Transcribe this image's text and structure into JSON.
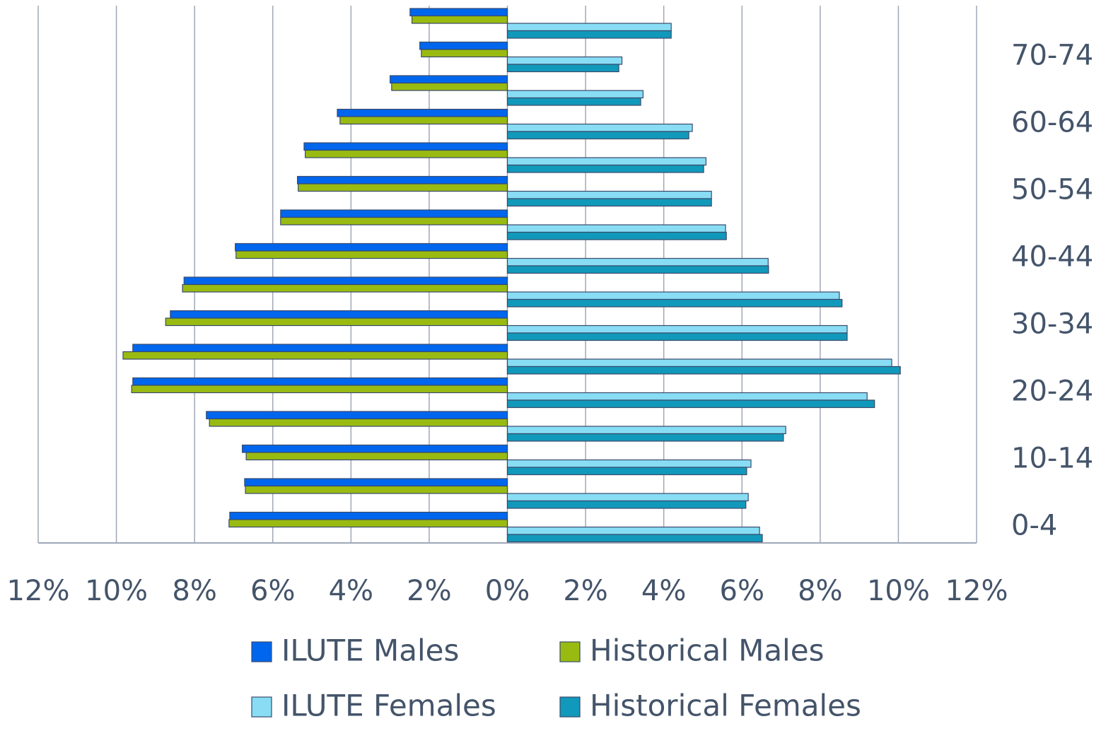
{
  "chart_data": {
    "type": "pyramid",
    "categories": [
      "0-4",
      null,
      "10-14",
      null,
      "20-24",
      null,
      "30-34",
      null,
      "40-44",
      null,
      "50-54",
      null,
      "60-64",
      null,
      "70-74",
      null
    ],
    "series": [
      {
        "name": "ILUTE Males",
        "color": "#0066ee",
        "values": [
          -7.1,
          -6.72,
          -6.78,
          -7.7,
          -9.58,
          -9.58,
          -8.62,
          -8.27,
          -6.96,
          -5.8,
          -5.37,
          -5.2,
          -4.35,
          -3.0,
          -2.24,
          -2.49
        ]
      },
      {
        "name": "Historical Males",
        "color": "#99bb11",
        "values": [
          -7.12,
          -6.7,
          -6.68,
          -7.62,
          -9.61,
          -9.83,
          -8.74,
          -8.31,
          -6.94,
          -5.8,
          -5.35,
          -5.17,
          -4.28,
          -2.96,
          -2.2,
          -2.44
        ]
      },
      {
        "name": "ILUTE Females",
        "color": "#88ddf5",
        "values": [
          6.45,
          6.16,
          6.23,
          7.12,
          9.2,
          9.83,
          8.69,
          8.49,
          6.67,
          5.58,
          5.22,
          5.08,
          4.73,
          3.47,
          2.93,
          4.19
        ]
      },
      {
        "name": "Historical Females",
        "color": "#1199bb",
        "values": [
          6.52,
          6.1,
          6.12,
          7.06,
          9.39,
          10.05,
          8.69,
          8.56,
          6.68,
          5.6,
          5.22,
          5.02,
          4.64,
          3.41,
          2.85,
          4.19
        ]
      }
    ],
    "xlim": [
      -12,
      12
    ],
    "xticks": [
      {
        "value": -12,
        "label": "12%"
      },
      {
        "value": -10,
        "label": "10%"
      },
      {
        "value": -8,
        "label": "8%"
      },
      {
        "value": -6,
        "label": "6%"
      },
      {
        "value": -4,
        "label": "4%"
      },
      {
        "value": -2,
        "label": "2%"
      },
      {
        "value": 0,
        "label": "0%"
      },
      {
        "value": 2,
        "label": "2%"
      },
      {
        "value": 4,
        "label": "4%"
      },
      {
        "value": 6,
        "label": "6%"
      },
      {
        "value": 8,
        "label": "8%"
      },
      {
        "value": 10,
        "label": "10%"
      },
      {
        "value": 12,
        "label": "12%"
      }
    ],
    "grid": true
  }
}
